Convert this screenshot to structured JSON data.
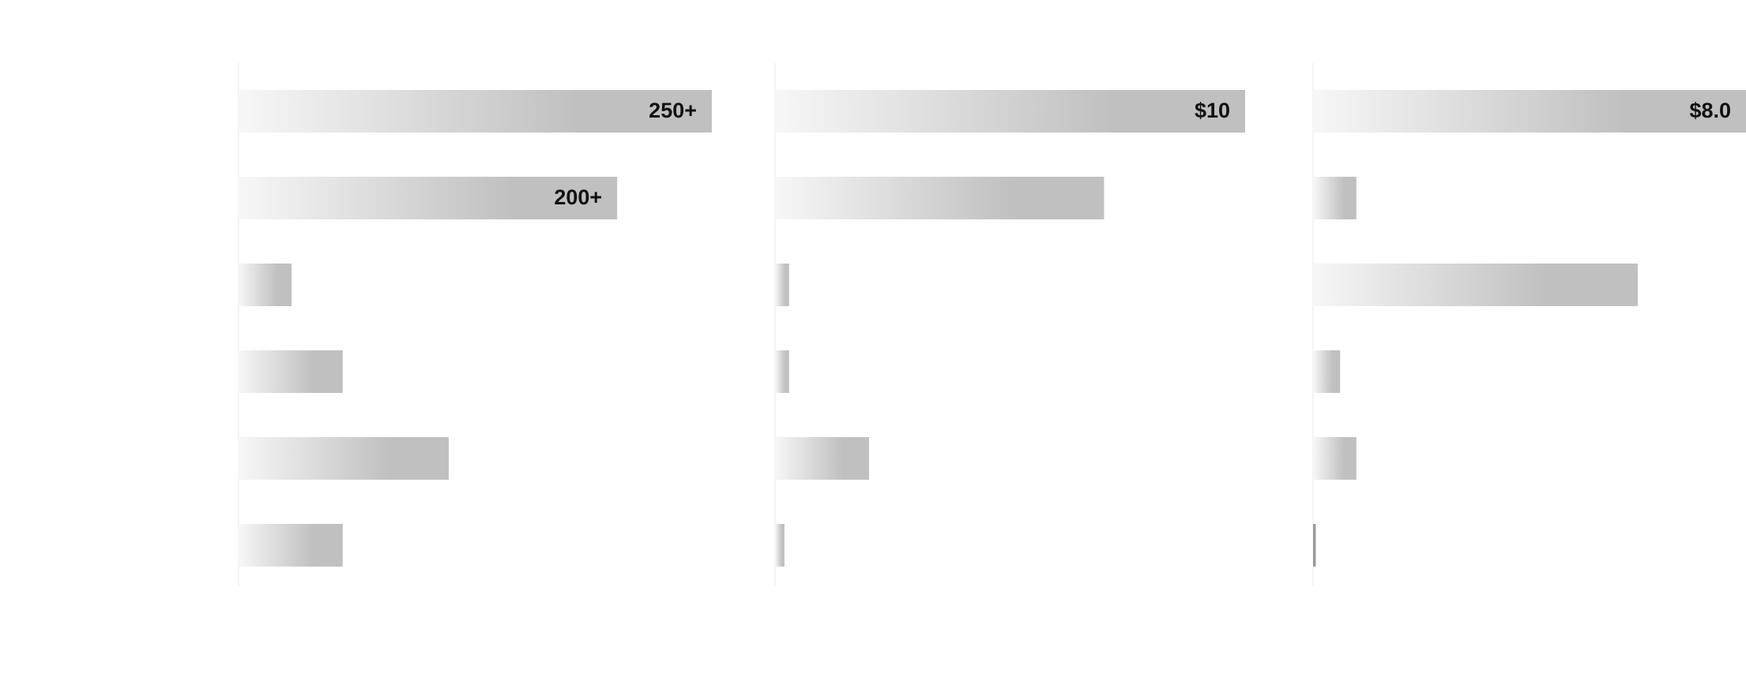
{
  "chart_data": [
    {
      "type": "bar",
      "orientation": "horizontal",
      "color": "#c0c0c0",
      "values": [
        250,
        200,
        28,
        55,
        111,
        55
      ],
      "value_labels": [
        "250+",
        "200+",
        null,
        null,
        null,
        null
      ]
    },
    {
      "type": "bar",
      "orientation": "horizontal",
      "color": "#c0c0c0",
      "values": [
        10,
        7.0,
        0.3,
        0.3,
        2.0,
        0.2
      ],
      "value_labels": [
        "$10",
        null,
        null,
        null,
        null,
        null
      ]
    },
    {
      "type": "bar",
      "orientation": "horizontal",
      "color": "#c0c0c0",
      "values": [
        8.0,
        0.8,
        6.0,
        0.5,
        0.8,
        0.05
      ],
      "value_labels": [
        "$8.0",
        null,
        null,
        null,
        null,
        null
      ]
    }
  ]
}
